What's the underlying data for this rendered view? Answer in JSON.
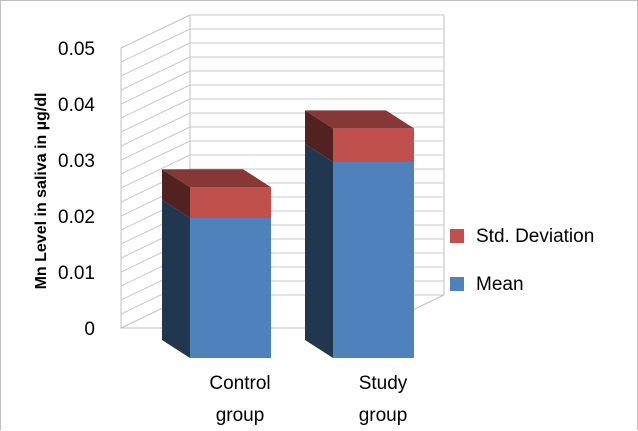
{
  "chart_data": {
    "type": "bar",
    "stacked": true,
    "three_d": true,
    "categories": [
      [
        "Control",
        "group"
      ],
      [
        "Study",
        "group"
      ]
    ],
    "series": [
      {
        "name": "Mean",
        "color": "#4f81bd",
        "values": [
          0.025,
          0.035
        ]
      },
      {
        "name": "Std. Deviation",
        "color": "#c0504d",
        "values": [
          0.0055,
          0.006
        ]
      }
    ],
    "ylabel": "Mn Level in saliva in  µg/dl",
    "ylim": [
      0,
      0.05
    ],
    "yticks": [
      "0",
      "0.01",
      "0.02",
      "0.03",
      "0.04",
      "0.05"
    ],
    "grid": true,
    "legend_position": "right"
  }
}
